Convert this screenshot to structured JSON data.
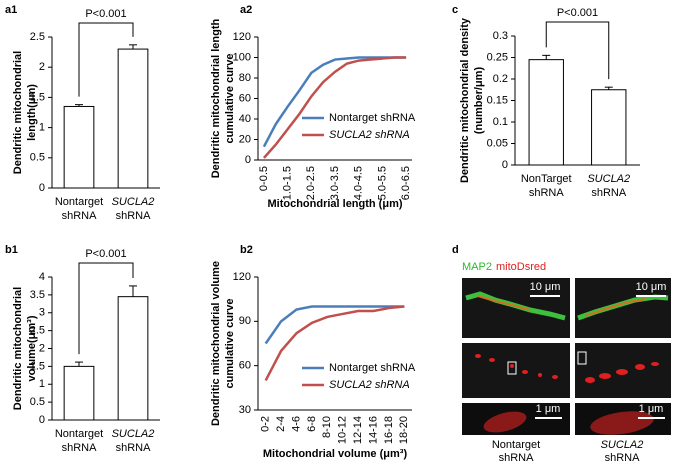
{
  "chart_data": [
    {
      "type": "bar",
      "panel": "a1",
      "ylabel": [
        "Dendritic mitochondrial",
        "length(μm)"
      ],
      "categories": [
        [
          "Nontarget",
          "shRNA"
        ],
        [
          "SUCLA2",
          "shRNA"
        ]
      ],
      "category_italic": [
        false,
        true
      ],
      "values": [
        1.35,
        2.3
      ],
      "errors": [
        0.03,
        0.07
      ],
      "color": "#ffffff",
      "ylim": [
        0,
        2.5
      ],
      "yticks": [
        0,
        0.5,
        1,
        1.5,
        2,
        2.5
      ],
      "annotation": "P<0.001"
    },
    {
      "type": "line",
      "panel": "a2",
      "ylabel": [
        "Dendritic mitochondrial length",
        "cumulative curve"
      ],
      "xlabel": "Mitochondrial length (μm)",
      "categories": [
        "0-0.5",
        null,
        "1.0-1.5",
        null,
        "2.0-2.5",
        null,
        "3.0-3.5",
        null,
        "4.0-4.5",
        null,
        "5.0-5.5",
        null,
        "6.0-6.5"
      ],
      "series": [
        {
          "name": "Nontarget shRNA",
          "color": "#4a7ebb",
          "italic": false,
          "values": [
            13,
            35,
            52,
            68,
            85,
            93,
            98,
            99,
            100,
            100,
            100,
            100,
            100
          ]
        },
        {
          "name": "SUCLA2 shRNA",
          "color": "#c0504d",
          "italic": true,
          "values": [
            2,
            15,
            30,
            45,
            62,
            76,
            86,
            94,
            97,
            98,
            99,
            100,
            100
          ]
        }
      ],
      "ylim": [
        0,
        120
      ],
      "yticks": [
        0,
        20,
        40,
        60,
        80,
        100,
        120
      ],
      "legend": "lower-right"
    },
    {
      "type": "bar",
      "panel": "c",
      "ylabel": [
        "Dendritic mitochondrial density",
        "(number/μm)"
      ],
      "categories": [
        [
          "NonTarget",
          "shRNA"
        ],
        [
          "SUCLA2",
          "shRNA"
        ]
      ],
      "category_italic": [
        false,
        true
      ],
      "values": [
        0.245,
        0.175
      ],
      "errors": [
        0.01,
        0.006
      ],
      "color": "#ffffff",
      "ylim": [
        0,
        0.3
      ],
      "yticks": [
        0,
        0.05,
        0.1,
        0.15,
        0.2,
        0.25,
        0.3
      ],
      "annotation": "P<0.001"
    },
    {
      "type": "bar",
      "panel": "b1",
      "ylabel": [
        "Dendritic mitochondrial",
        "volume(μm³)"
      ],
      "categories": [
        [
          "Nontarget",
          "shRNA"
        ],
        [
          "SUCLA2",
          "shRNA"
        ]
      ],
      "category_italic": [
        false,
        true
      ],
      "values": [
        1.5,
        3.45
      ],
      "errors": [
        0.12,
        0.3
      ],
      "color": "#ffffff",
      "ylim": [
        0,
        4
      ],
      "yticks": [
        0,
        0.5,
        1,
        1.5,
        2,
        2.5,
        3,
        3.5,
        4
      ],
      "annotation": "P<0.001"
    },
    {
      "type": "line",
      "panel": "b2",
      "ylabel": [
        "Dendritic mitochondrial volume",
        "cumulative curve"
      ],
      "xlabel": "Mitochondrial volume (μm³)",
      "categories": [
        "0-2",
        "2-4",
        "4-6",
        "6-8",
        "8-10",
        "10-12",
        "12-14",
        "14-16",
        "16-18",
        "18-20"
      ],
      "series": [
        {
          "name": "Nontarget shRNA",
          "color": "#4a7ebb",
          "italic": false,
          "values": [
            75,
            90,
            98,
            100,
            100,
            100,
            100,
            100,
            100,
            100
          ]
        },
        {
          "name": "SUCLA2 shRNA",
          "color": "#c0504d",
          "italic": true,
          "values": [
            50,
            70,
            82,
            89,
            93,
            95,
            97,
            97,
            99,
            100
          ]
        }
      ],
      "ylim": [
        30,
        120
      ],
      "yticks": [
        30,
        60,
        90,
        120
      ],
      "legend": "lower-right"
    }
  ],
  "panel_d": {
    "label": "d",
    "stains": [
      "MAP2",
      "mitoDsred"
    ],
    "scale_bars": [
      "10 μm",
      "10 μm",
      "1 μm",
      "1 μm"
    ],
    "columns": [
      [
        "Nontarget",
        "shRNA"
      ],
      [
        "SUCLA2",
        "shRNA"
      ]
    ]
  }
}
